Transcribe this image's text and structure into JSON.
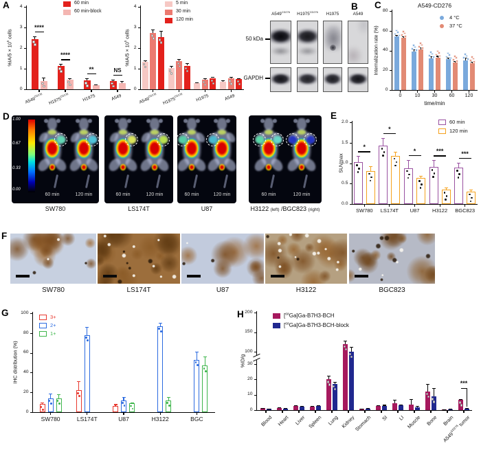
{
  "panel_labels": {
    "a": "A",
    "b": "B",
    "c": "C",
    "d": "D",
    "e": "E",
    "f": "F",
    "g": "G",
    "h": "H"
  },
  "panel_b": {
    "lanes": [
      "A549^{CD276}",
      "H1975^{CD276}",
      "H1975",
      "A549"
    ],
    "row_labels": [
      "50 kDa",
      "GAPDH"
    ],
    "band_intensity_top": [
      1.0,
      0.92,
      0.45,
      0.15
    ],
    "band_intensity_bottom": [
      0.95,
      0.88,
      0.9,
      0.95
    ]
  },
  "panel_d": {
    "colorbar_labels": [
      "1.00",
      "0.67",
      "0.33",
      "0.00"
    ],
    "groups": [
      {
        "caption": "SW780",
        "mice": [
          {
            "time": "60 min",
            "tumors": [
              {
                "side": "R",
                "color": "#62d6b4"
              }
            ]
          },
          {
            "time": "120 min",
            "tumors": [
              {
                "side": "R",
                "color": "#4fc3d9"
              }
            ]
          }
        ]
      },
      {
        "caption": "LS174T",
        "mice": [
          {
            "time": "60 min",
            "tumors": [
              {
                "side": "R",
                "color": "#d9e35a"
              }
            ]
          },
          {
            "time": "120 min",
            "tumors": [
              {
                "side": "R",
                "color": "#b8e04e"
              }
            ]
          }
        ]
      },
      {
        "caption": "U87",
        "mice": [
          {
            "time": "60 min",
            "tumors": [
              {
                "side": "L",
                "color": "#55cda6"
              }
            ]
          },
          {
            "time": "120 min",
            "tumors": [
              {
                "side": "L",
                "color": "#49b9cf"
              }
            ]
          }
        ]
      },
      {
        "caption": "H3122 ~{(left)} /BGC823 ~{(right)}",
        "mice": [
          {
            "time": "60 min",
            "tumors": [
              {
                "side": "L",
                "color": "#5cd8a8"
              },
              {
                "side": "R",
                "color": "#67d8c8"
              }
            ]
          },
          {
            "time": "120 min",
            "tumors": [
              {
                "side": "L",
                "color": "#2535c5"
              },
              {
                "side": "R",
                "color": "#2535c5"
              }
            ]
          }
        ]
      }
    ]
  },
  "panel_f": {
    "captions": [
      "SW780",
      "LS174T",
      "U87",
      "H3122",
      "BGC823"
    ]
  },
  "chart_data": [
    {
      "id": "A-left",
      "type": "bar",
      "title": "",
      "ylabel": "%IA/5 × 10^{5} cells",
      "ylim": [
        0,
        4
      ],
      "yticks": [
        0,
        1,
        2,
        3,
        4
      ],
      "categories": [
        "A549^{CD276}",
        "H1975^{CD276}",
        "H1975",
        "A549"
      ],
      "series": [
        {
          "name": "60 min",
          "color": "#e3211c",
          "values": [
            2.42,
            1.12,
            0.42,
            0.4
          ],
          "errors": [
            0.15,
            0.1,
            0.12,
            0.06
          ]
        },
        {
          "name": "60 min-block",
          "color": "#f4b6b2",
          "values": [
            0.4,
            0.46,
            0.2,
            0.3
          ],
          "errors": [
            0.18,
            0.06,
            0.05,
            0.1
          ]
        }
      ],
      "significance": [
        {
          "group": 0,
          "text": "****"
        },
        {
          "group": 1,
          "text": "****"
        },
        {
          "group": 2,
          "text": "**"
        },
        {
          "group": 3,
          "text": "NS"
        }
      ]
    },
    {
      "id": "A-right",
      "type": "bar",
      "title": "",
      "ylabel": "%IA/5 × 10^{5} cells",
      "ylim": [
        0,
        4
      ],
      "yticks": [
        0,
        1,
        2,
        3,
        4
      ],
      "categories": [
        "A549^{CD276}",
        "H1975^{CD276}",
        "H1975",
        "A549"
      ],
      "series": [
        {
          "name": "5 min",
          "color": "#f6c8c4",
          "values": [
            1.35,
            1.02,
            0.3,
            0.36
          ],
          "errors": [
            0.05,
            0.1,
            0.05,
            0.06
          ]
        },
        {
          "name": "30 min",
          "color": "#ec7a70",
          "values": [
            2.72,
            1.38,
            0.46,
            0.52
          ],
          "errors": [
            0.18,
            0.1,
            0.06,
            0.08
          ]
        },
        {
          "name": "120 min",
          "color": "#e3211c",
          "values": [
            2.52,
            1.15,
            0.55,
            0.5
          ],
          "errors": [
            0.3,
            0.12,
            0.06,
            0.05
          ]
        }
      ]
    },
    {
      "id": "C",
      "type": "bar",
      "title": "A549-CD276",
      "ylabel": "Internalization rate (%)",
      "xlabel": "time/min",
      "ylim": [
        0,
        80
      ],
      "yticks": [
        0,
        20,
        40,
        60,
        80
      ],
      "categories": [
        "0",
        "10",
        "30",
        "60",
        "120"
      ],
      "series": [
        {
          "name": "4 °C",
          "color": "#7aa9dc",
          "values": [
            54,
            39,
            32,
            31,
            30
          ],
          "errors": [
            2,
            2,
            2,
            2,
            2.5
          ]
        },
        {
          "name": "37 °C",
          "color": "#e28a74",
          "values": [
            53,
            41,
            33,
            28,
            27
          ],
          "errors": [
            1.5,
            2,
            1.5,
            1.5,
            1.5
          ]
        }
      ]
    },
    {
      "id": "E",
      "type": "bar",
      "title": "",
      "ylabel": "SUVmax",
      "ylim": [
        0,
        2
      ],
      "yticks": [
        0,
        0.5,
        1,
        1.5,
        2
      ],
      "ytick_decimals": 1,
      "categories": [
        "SW780",
        "LS174T",
        "U87",
        "H3122",
        "BGC823"
      ],
      "series": [
        {
          "name": "60 min",
          "color": "#9950a0",
          "values": [
            1.02,
            1.43,
            0.88,
            0.9,
            0.89
          ],
          "errors": [
            0.15,
            0.18,
            0.2,
            0.17,
            0.12
          ]
        },
        {
          "name": "120 min",
          "color": "#f5a11c",
          "values": [
            0.81,
            1.18,
            0.64,
            0.35,
            0.31
          ],
          "errors": [
            0.12,
            0.1,
            0.05,
            0.05,
            0.04
          ]
        }
      ],
      "significance": [
        {
          "group": 0,
          "text": "*"
        },
        {
          "group": 1,
          "text": "*"
        },
        {
          "group": 2,
          "text": "*"
        },
        {
          "group": 3,
          "text": "***"
        },
        {
          "group": 4,
          "text": "***"
        }
      ]
    },
    {
      "id": "G",
      "type": "bar",
      "title": "",
      "ylabel": "IHC distribution (%)",
      "ylim": [
        0,
        100
      ],
      "yticks": [
        0,
        20,
        40,
        60,
        80,
        100
      ],
      "categories": [
        "SW780",
        "LS174T",
        "U87",
        "H3122",
        "BGC"
      ],
      "series": [
        {
          "name": "3+",
          "color": "#e8382e",
          "values": [
            8,
            22,
            6,
            null,
            null
          ],
          "errors": [
            2,
            9,
            2,
            null,
            null
          ]
        },
        {
          "name": "2+",
          "color": "#2a6ae0",
          "values": [
            14,
            78,
            12,
            87,
            53
          ],
          "errors": [
            5,
            8,
            3,
            3,
            8
          ]
        },
        {
          "name": "1+",
          "color": "#3db54a",
          "values": [
            14,
            null,
            9,
            12,
            47
          ],
          "errors": [
            4,
            null,
            1,
            3,
            9
          ]
        }
      ]
    },
    {
      "id": "H",
      "type": "bar",
      "title": "",
      "ylabel": "%ID/g",
      "axis_break": {
        "lower_lim": [
          0,
          30
        ],
        "upper_lim": [
          100,
          200
        ],
        "lower_ticks": [
          0,
          10,
          20,
          30
        ],
        "upper_ticks": [
          100,
          150,
          200
        ]
      },
      "categories": [
        "Blood",
        "Heart",
        "Liver",
        "Spleen",
        "Lung",
        "Kidney",
        "Stomach",
        "SI",
        "LI",
        "Muscle",
        "Bone",
        "Brain",
        "A549^{CD276} tumor"
      ],
      "series": [
        {
          "name": "[^{68}Ga]Ga-B7H3-BCH",
          "color": "#a6195e",
          "values": [
            1.2,
            1.5,
            2.5,
            2.2,
            20,
            120,
            0.8,
            2.5,
            4.5,
            3.5,
            12,
            0.3,
            6.5
          ],
          "errors": [
            0.3,
            0.3,
            0.5,
            0.4,
            2.5,
            8,
            0.3,
            0.6,
            2.2,
            3.5,
            5,
            0.2,
            0.8
          ]
        },
        {
          "name": "[^{68}Ga]Ga-B7H3-BCH-block",
          "color": "#20288f",
          "values": [
            0.8,
            1.0,
            2.3,
            2.8,
            17,
            100,
            1.0,
            2.8,
            3.0,
            1.8,
            8.8,
            0.5,
            0.9
          ],
          "errors": [
            0.2,
            0.3,
            0.4,
            0.5,
            1.5,
            12,
            0.4,
            0.6,
            0.8,
            0.8,
            5.5,
            0.3,
            0.4
          ]
        }
      ],
      "significance": [
        {
          "group": 12,
          "text": "***",
          "bracket": true
        }
      ]
    }
  ]
}
